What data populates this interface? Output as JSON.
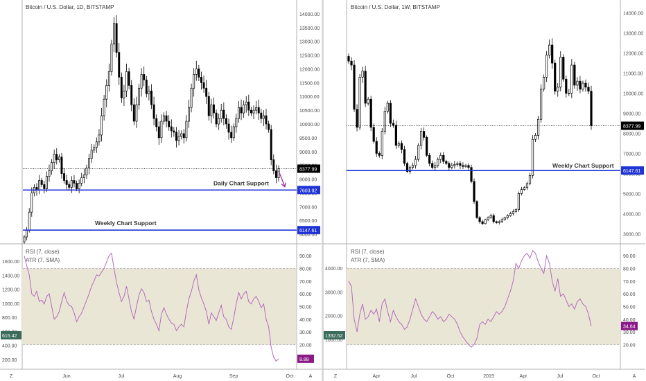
{
  "colors": {
    "background": "#ffffff",
    "axis_text": "#4a4a4a",
    "candle": "#000000",
    "support_line": "#1f33d6",
    "support_label_bg": "#1f33d6",
    "price_label_bg": "#000000",
    "rsi_line": "#b36bbd",
    "rsi_band": "#eae6d5",
    "rsi_label_bg": "#8b1a87",
    "atr_label_bg": "#3b6b5a",
    "arrow": "#9b2fa0",
    "divider": "#d9d9d9"
  },
  "chart_data": [
    {
      "type": "candlestick",
      "title": "Bitcoin / U.S. Dollar, 1D, BITSTAMP",
      "x_ticks": [
        "Z",
        "Jun",
        "Jul",
        "Aug",
        "Sep",
        "Oct"
      ],
      "y_ticks": [
        "14000.00",
        "13500.00",
        "13000.00",
        "12500.00",
        "12000.00",
        "11500.00",
        "11000.00",
        "10500.00",
        "10000.00",
        "9500.00",
        "9000.00",
        "8500.00",
        "8000.00",
        "7500.00",
        "7000.00",
        "6500.00",
        "6000.00"
      ],
      "ylim": [
        5800,
        14250
      ],
      "last_price_label": "8377.99",
      "last_price": 8377.99,
      "support_lines": [
        {
          "value": 7603.92,
          "label": "7603.92",
          "annotation": "Daily Chart Support"
        },
        {
          "value": 6147.61,
          "label": "6147.61",
          "annotation": "Weekly Chart Support"
        }
      ],
      "closes": [
        5900,
        6150,
        6800,
        7500,
        7700,
        7600,
        7950,
        7800,
        7650,
        8100,
        8300,
        8600,
        8900,
        8700,
        8800,
        8200,
        7950,
        7800,
        7700,
        7950,
        7850,
        7650,
        7850,
        8050,
        8150,
        8400,
        8750,
        9050,
        9150,
        9350,
        9600,
        10300,
        10900,
        11400,
        11900,
        12900,
        13650,
        12600,
        11700,
        10950,
        11200,
        11900,
        11400,
        10700,
        10100,
        10700,
        11300,
        11800,
        11600,
        11100,
        11200,
        10700,
        10200,
        9900,
        9500,
        10100,
        10300,
        10100,
        9900,
        9750,
        9700,
        9400,
        9550,
        9650,
        9500,
        10100,
        10600,
        11300,
        11800,
        12000,
        11700,
        11500,
        11300,
        11000,
        10300,
        10700,
        10400,
        10000,
        10200,
        10500,
        10200,
        10000,
        9700,
        9500,
        9900,
        10200,
        10600,
        10400,
        10700,
        10800,
        10500,
        10400,
        10500,
        10600,
        10400,
        10200,
        10300,
        10000,
        9800,
        8700,
        8300,
        8050,
        8377.99
      ],
      "rsi_panel": {
        "title": "RSI (7, close)",
        "atr_title": "ATR (7, SMA)",
        "left_ticks": [
          "1600.00",
          "1400.00",
          "1200.00",
          "1000.00",
          "800.00",
          "600.00",
          "400.00",
          "200.00"
        ],
        "right_ticks": [
          "90.00",
          "80.00",
          "70.00",
          "60.00",
          "50.00",
          "40.00",
          "30.00",
          "20.00",
          "10.00"
        ],
        "band": [
          20,
          80
        ],
        "rsi_label": "8.88",
        "atr_label": "615.42",
        "rsi_values": [
          90,
          82,
          75,
          60,
          58,
          62,
          54,
          55,
          52,
          58,
          60,
          50,
          40,
          42,
          46,
          54,
          61,
          54,
          51,
          50,
          45,
          38,
          42,
          45,
          50,
          55,
          60,
          66,
          70,
          75,
          74,
          77,
          80,
          85,
          90,
          92,
          80,
          69,
          61,
          54,
          58,
          66,
          56,
          46,
          40,
          50,
          59,
          64,
          61,
          54,
          55,
          46,
          40,
          36,
          31,
          44,
          49,
          44,
          40,
          37,
          36,
          31,
          34,
          36,
          34,
          46,
          56,
          62,
          70,
          75,
          63,
          57,
          52,
          46,
          36,
          45,
          42,
          39,
          45,
          51,
          42,
          40,
          34,
          32,
          41,
          52,
          61,
          56,
          60,
          62,
          54,
          52,
          56,
          58,
          54,
          49,
          52,
          40,
          34,
          18,
          10,
          7,
          8.88
        ]
      }
    },
    {
      "type": "candlestick",
      "title": "Bitcoin / U.S. Dollar, 1W, BITSTAMP",
      "x_ticks": [
        "Z",
        "Apr",
        "Jul",
        "Oct",
        "2019",
        "Apr",
        "Jul",
        "Oct"
      ],
      "y_ticks": [
        "14000.00",
        "13000.00",
        "12000.00",
        "11000.00",
        "10000.00",
        "9000.00",
        "8000.00",
        "7000.00",
        "6000.00",
        "5000.00",
        "4000.00",
        "3000.00"
      ],
      "ylim": [
        2700,
        14300
      ],
      "last_price_label": "8377.99",
      "last_price": 8377.99,
      "support_lines": [
        {
          "value": 6147.61,
          "label": "6147.61",
          "annotation": "Weekly Chart Support"
        }
      ],
      "closes": [
        11600,
        11400,
        9200,
        8300,
        10800,
        11100,
        9500,
        9700,
        8300,
        7600,
        7000,
        6900,
        8100,
        9100,
        9500,
        8500,
        8400,
        7400,
        7500,
        7200,
        6500,
        6100,
        6300,
        6400,
        6700,
        7400,
        8100,
        7800,
        6900,
        6500,
        6300,
        6400,
        6700,
        6900,
        6600,
        6500,
        6300,
        6400,
        6450,
        6500,
        6400,
        6350,
        6400,
        6300,
        5600,
        4600,
        3800,
        3600,
        3500,
        3700,
        3800,
        3900,
        3600,
        3550,
        3600,
        3700,
        3800,
        3900,
        4000,
        4100,
        4200,
        5000,
        5200,
        5300,
        5500,
        5900,
        7700,
        7900,
        8700,
        10200,
        10800,
        11900,
        12400,
        11500,
        10100,
        10300,
        11800,
        10700,
        10000,
        10000,
        11400,
        10400,
        10600,
        10200,
        10500,
        10300,
        10100,
        8377.99
      ],
      "rsi_panel": {
        "title": "RSI (7, close)",
        "atr_title": "ATR (7, SMA)",
        "left_ticks": [
          "4000.00",
          "3000.00",
          "2000.00",
          "1000.00"
        ],
        "right_ticks": [
          "90.00",
          "80.00",
          "70.00",
          "60.00",
          "50.00",
          "40.00",
          "30.00",
          "20.00"
        ],
        "band": [
          20,
          80
        ],
        "rsi_label": "34.64",
        "atr_label": "1332.52",
        "rsi_values": [
          70,
          66,
          40,
          30,
          44,
          52,
          40,
          42,
          47,
          44,
          48,
          38,
          52,
          56,
          46,
          38,
          47,
          42,
          38,
          36,
          32,
          34,
          40,
          48,
          56,
          50,
          44,
          40,
          38,
          42,
          46,
          44,
          40,
          42,
          38,
          40,
          44,
          42,
          40,
          36,
          30,
          26,
          23,
          20,
          18,
          20,
          25,
          36,
          38,
          36,
          40,
          38,
          42,
          46,
          44,
          46,
          50,
          56,
          62,
          70,
          84,
          80,
          86,
          90,
          92,
          88,
          94,
          92,
          85,
          80,
          76,
          90,
          84,
          70,
          62,
          72,
          58,
          60,
          55,
          50,
          52,
          48,
          54,
          56,
          52,
          50,
          44,
          34.64
        ]
      }
    }
  ]
}
